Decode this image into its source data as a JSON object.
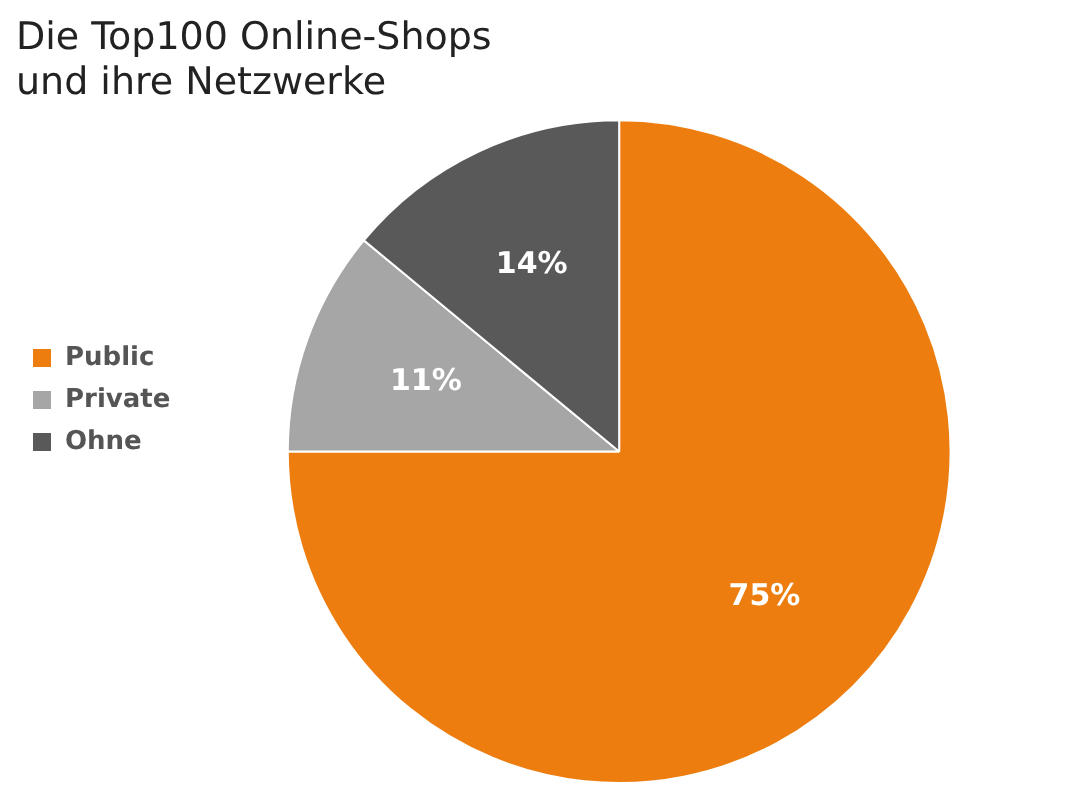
{
  "chart_data": {
    "type": "pie",
    "title": "Die Top100 Online-Shops\nund ihre Netzwerke",
    "categories": [
      "Public",
      "Private",
      "Ohne"
    ],
    "values": [
      75,
      11,
      14
    ],
    "colors": [
      "#ed7d0f",
      "#a6a6a6",
      "#595959"
    ],
    "value_labels": [
      "75%",
      "11%",
      "14%"
    ],
    "legend": "left"
  }
}
